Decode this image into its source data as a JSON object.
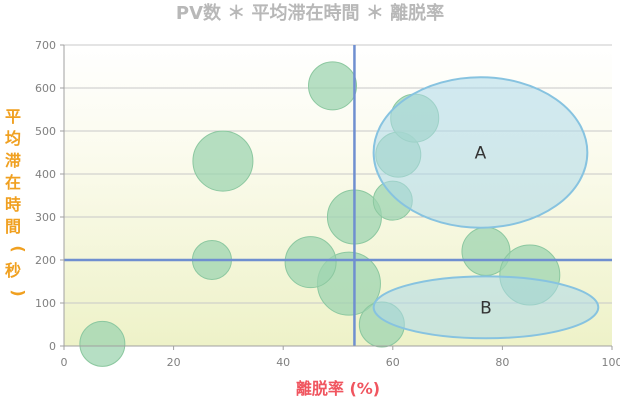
{
  "chart_data": {
    "type": "scatter",
    "subtype": "bubble",
    "title": "PV数 ＊ 平均滞在時間 ＊ 離脱率",
    "xlabel": "離脱率 (%)",
    "ylabel": "平均滞在時間(秒)",
    "xlim": [
      0,
      100
    ],
    "ylim": [
      0,
      700
    ],
    "x_ticks": [
      0,
      20,
      40,
      60,
      80,
      100
    ],
    "y_ticks": [
      0,
      100,
      200,
      300,
      400,
      500,
      600,
      700
    ],
    "grid": true,
    "reference_lines": {
      "x": 53,
      "y": 200
    },
    "bubble_color": "#9dd4b0",
    "bubbles": [
      {
        "x": 7,
        "y": 5,
        "size": 0.75
      },
      {
        "x": 27,
        "y": 200,
        "size": 0.65
      },
      {
        "x": 29,
        "y": 430,
        "size": 1.0
      },
      {
        "x": 49,
        "y": 605,
        "size": 0.8
      },
      {
        "x": 52,
        "y": 145,
        "size": 1.05
      },
      {
        "x": 45,
        "y": 195,
        "size": 0.85
      },
      {
        "x": 53,
        "y": 300,
        "size": 0.9
      },
      {
        "x": 58,
        "y": 50,
        "size": 0.75
      },
      {
        "x": 60,
        "y": 338,
        "size": 0.65
      },
      {
        "x": 61,
        "y": 445,
        "size": 0.75
      },
      {
        "x": 64,
        "y": 530,
        "size": 0.8
      },
      {
        "x": 77,
        "y": 220,
        "size": 0.8
      },
      {
        "x": 85,
        "y": 165,
        "size": 1.0
      }
    ],
    "regions": [
      {
        "label": "A",
        "cx": 76,
        "cy": 450,
        "rx": 19.5,
        "ry": 175
      },
      {
        "label": "B",
        "cx": 77,
        "cy": 90,
        "rx": 20.5,
        "ry": 72
      }
    ]
  }
}
